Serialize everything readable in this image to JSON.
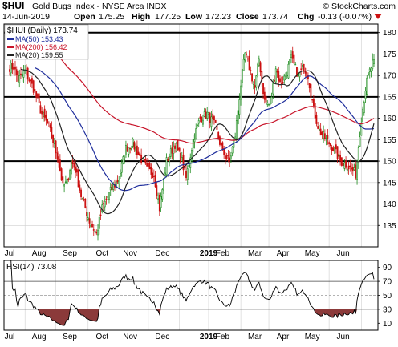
{
  "header": {
    "symbol": "$HUI",
    "name": "Gold Bugs Index - NYSE Arca  INDX",
    "watermark": "© StockCharts.com",
    "date": "14-Jun-2019",
    "open_label": "Open",
    "open": "175.25",
    "high_label": "High",
    "high": "177.25",
    "low_label": "Low",
    "low": "172.23",
    "close_label": "Close",
    "close": "173.74",
    "chg_label": "Chg",
    "chg": "-0.13 (-0.07%)"
  },
  "colors": {
    "up": "#1a8a1a",
    "down": "#cc1111",
    "ma50": "#1f2e9c",
    "ma200": "#c8142a",
    "ma20": "#222222",
    "rsi_fill_low": "#8b3a3a",
    "grid": "#cfcfcf",
    "hline": "#000000"
  },
  "chart_data": [
    {
      "type": "candlestick",
      "title": "$HUI (Daily) 173.74",
      "legend": [
        {
          "name": "MA(50) 153.43",
          "color": "#1f2e9c"
        },
        {
          "name": "MA(200) 156.42",
          "color": "#c8142a"
        },
        {
          "name": "MA(20) 159.55",
          "color": "#222222"
        }
      ],
      "y_ticks": [
        135,
        140,
        145,
        150,
        155,
        160,
        165,
        170,
        175,
        180
      ],
      "ylim": [
        130,
        182
      ],
      "x_tick_labels": [
        "Jul",
        "Aug",
        "Sep",
        "Oct",
        "Nov",
        "Dec",
        "2019",
        "Feb",
        "Mar",
        "Apr",
        "May",
        "Jun"
      ],
      "horizontal_lines": [
        180,
        165,
        150
      ],
      "close_keypoints": [
        [
          "2018-06-20",
          172
        ],
        [
          "2018-06-25",
          169
        ],
        [
          "2018-07-02",
          171
        ],
        [
          "2018-07-10",
          167
        ],
        [
          "2018-07-18",
          161
        ],
        [
          "2018-07-25",
          158
        ],
        [
          "2018-08-03",
          150
        ],
        [
          "2018-08-08",
          144
        ],
        [
          "2018-08-13",
          145
        ],
        [
          "2018-08-16",
          150
        ],
        [
          "2018-08-21",
          148
        ],
        [
          "2018-08-27",
          142
        ],
        [
          "2018-09-04",
          136
        ],
        [
          "2018-09-11",
          133
        ],
        [
          "2018-09-17",
          139
        ],
        [
          "2018-09-25",
          143
        ],
        [
          "2018-10-03",
          146
        ],
        [
          "2018-10-10",
          153
        ],
        [
          "2018-10-17",
          154
        ],
        [
          "2018-10-24",
          151
        ],
        [
          "2018-10-31",
          148
        ],
        [
          "2018-11-07",
          147
        ],
        [
          "2018-11-13",
          139
        ],
        [
          "2018-11-20",
          150
        ],
        [
          "2018-11-28",
          154
        ],
        [
          "2018-12-05",
          150
        ],
        [
          "2018-12-10",
          146
        ],
        [
          "2018-12-17",
          155
        ],
        [
          "2018-12-24",
          160
        ],
        [
          "2018-12-31",
          161
        ],
        [
          "2019-01-08",
          158
        ],
        [
          "2019-01-15",
          152
        ],
        [
          "2019-01-22",
          150
        ],
        [
          "2019-01-28",
          156
        ],
        [
          "2019-02-01",
          168
        ],
        [
          "2019-02-06",
          175
        ],
        [
          "2019-02-11",
          172
        ],
        [
          "2019-02-15",
          167
        ],
        [
          "2019-02-20",
          174
        ],
        [
          "2019-02-26",
          164
        ],
        [
          "2019-03-04",
          163
        ],
        [
          "2019-03-08",
          172
        ],
        [
          "2019-03-13",
          168
        ],
        [
          "2019-03-19",
          170
        ],
        [
          "2019-03-25",
          174
        ],
        [
          "2019-04-01",
          170
        ],
        [
          "2019-04-05",
          172
        ],
        [
          "2019-04-10",
          170
        ],
        [
          "2019-04-16",
          162
        ],
        [
          "2019-04-22",
          157
        ],
        [
          "2019-04-29",
          155
        ],
        [
          "2019-05-06",
          153
        ],
        [
          "2019-05-13",
          150
        ],
        [
          "2019-05-20",
          149
        ],
        [
          "2019-05-28",
          147
        ],
        [
          "2019-06-03",
          160
        ],
        [
          "2019-06-06",
          167
        ],
        [
          "2019-06-10",
          170
        ],
        [
          "2019-06-14",
          173.74
        ]
      ]
    },
    {
      "type": "line",
      "title": "RSI(14) 73.08",
      "y_ticks": [
        10,
        30,
        50,
        70,
        90
      ],
      "ylim": [
        0,
        100
      ],
      "reference_lines": [
        70,
        50,
        30
      ],
      "x_tick_labels": [
        "Jul",
        "Aug",
        "Sep",
        "Oct",
        "Nov",
        "Dec",
        "2019",
        "Feb",
        "Mar",
        "Apr",
        "May",
        "Jun"
      ]
    }
  ]
}
